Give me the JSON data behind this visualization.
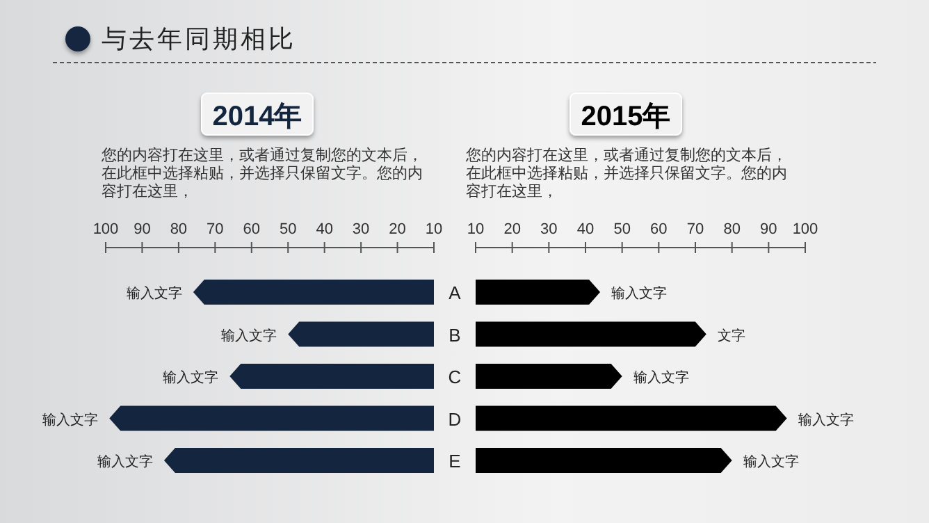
{
  "chart_data": [
    {
      "type": "bar",
      "orientation": "horizontal",
      "title": "2014年",
      "subtitle": "您的内容打在这里，或者通过复制您的文本后，在此框中选择粘贴，并选择只保留文字。您的内容打在这里，",
      "annotations": [
        "与去年同期相比"
      ],
      "categories": [
        "A",
        "B",
        "C",
        "D",
        "E"
      ],
      "series": [
        {
          "color": "#14263f",
          "values": [
            76,
            50,
            66,
            99,
            84
          ],
          "value_labels": [
            "输入文字",
            "输入文字",
            "输入文字",
            "输入文字",
            "输入文字"
          ]
        }
      ],
      "xlim": [
        100,
        10
      ],
      "xticks": [
        100,
        90,
        80,
        70,
        60,
        50,
        40,
        30,
        20,
        10
      ]
    },
    {
      "type": "bar",
      "orientation": "horizontal",
      "title": "2015年",
      "subtitle": "您的内容打在这里，或者通过复制您的文本后，在此框中选择粘贴，并选择只保留文字。您的内容打在这里，",
      "categories": [
        null,
        null,
        null,
        null,
        null
      ],
      "series": [
        {
          "color": "#000000",
          "values": [
            44,
            73,
            50,
            95,
            80
          ],
          "value_labels": [
            "输入文字",
            "文字",
            "输入文字",
            "输入文字",
            "输入文字"
          ]
        }
      ],
      "xlim": [
        10,
        100
      ],
      "xticks": [
        10,
        20,
        30,
        40,
        50,
        60,
        70,
        80,
        90,
        100
      ],
      "tick_labels": "x"
    }
  ]
}
